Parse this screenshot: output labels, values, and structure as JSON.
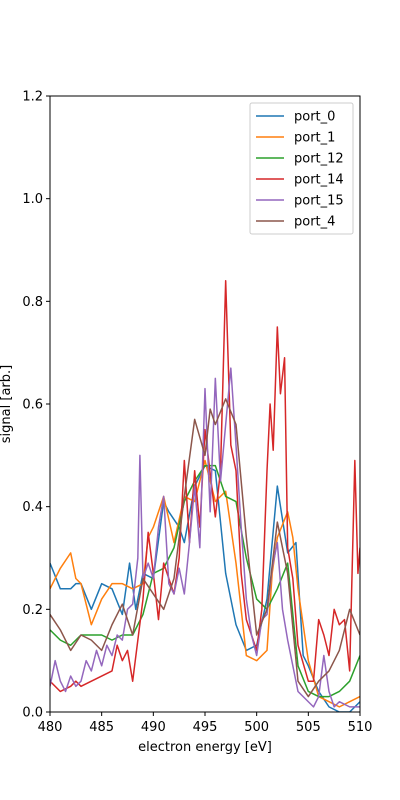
{
  "chart_data": {
    "type": "line",
    "title": "",
    "xlabel": "electron energy [eV]",
    "ylabel": "signal [arb.]",
    "xlim": [
      480,
      510
    ],
    "ylim": [
      0.0,
      1.2
    ],
    "xticks": [
      "480",
      "485",
      "490",
      "495",
      "500",
      "505",
      "510"
    ],
    "yticks": [
      "0.0",
      "0.2",
      "0.4",
      "0.6",
      "0.8",
      "1.0",
      "1.2"
    ],
    "legend_position": "top-right",
    "grid": false,
    "series": [
      {
        "name": "port_0",
        "color": "#1f77b4",
        "points": [
          [
            480,
            0.29
          ],
          [
            481,
            0.24
          ],
          [
            482,
            0.24
          ],
          [
            482.5,
            0.25
          ],
          [
            483,
            0.25
          ],
          [
            484,
            0.2
          ],
          [
            485,
            0.25
          ],
          [
            486,
            0.24
          ],
          [
            487,
            0.19
          ],
          [
            487.7,
            0.29
          ],
          [
            488.3,
            0.2
          ],
          [
            489,
            0.27
          ],
          [
            490,
            0.26
          ],
          [
            491,
            0.41
          ],
          [
            491.5,
            0.39
          ],
          [
            492.5,
            0.36
          ],
          [
            493,
            0.33
          ],
          [
            494,
            0.44
          ],
          [
            495,
            0.48
          ],
          [
            496,
            0.47
          ],
          [
            497,
            0.27
          ],
          [
            498,
            0.17
          ],
          [
            499,
            0.12
          ],
          [
            500,
            0.13
          ],
          [
            501,
            0.22
          ],
          [
            501.5,
            0.33
          ],
          [
            502,
            0.44
          ],
          [
            503,
            0.31
          ],
          [
            503.8,
            0.33
          ],
          [
            504.5,
            0.11
          ],
          [
            505,
            0.09
          ],
          [
            506,
            0.04
          ],
          [
            507,
            0.01
          ],
          [
            508,
            0.0
          ],
          [
            509,
            0.0
          ],
          [
            510,
            0.02
          ]
        ]
      },
      {
        "name": "port_1",
        "color": "#ff7f0e",
        "points": [
          [
            480,
            0.24
          ],
          [
            481,
            0.28
          ],
          [
            482,
            0.31
          ],
          [
            482.5,
            0.26
          ],
          [
            483,
            0.25
          ],
          [
            484,
            0.17
          ],
          [
            485,
            0.22
          ],
          [
            486,
            0.25
          ],
          [
            487,
            0.25
          ],
          [
            488,
            0.24
          ],
          [
            489,
            0.25
          ],
          [
            489.5,
            0.34
          ],
          [
            490,
            0.36
          ],
          [
            491,
            0.42
          ],
          [
            492,
            0.33
          ],
          [
            493,
            0.42
          ],
          [
            494,
            0.41
          ],
          [
            495,
            0.49
          ],
          [
            496,
            0.41
          ],
          [
            497,
            0.43
          ],
          [
            498,
            0.29
          ],
          [
            499,
            0.11
          ],
          [
            500,
            0.1
          ],
          [
            501,
            0.12
          ],
          [
            501.5,
            0.27
          ],
          [
            502,
            0.34
          ],
          [
            503,
            0.39
          ],
          [
            503.5,
            0.34
          ],
          [
            504,
            0.24
          ],
          [
            505,
            0.1
          ],
          [
            506,
            0.03
          ],
          [
            507,
            0.02
          ],
          [
            508,
            0.01
          ],
          [
            509,
            0.02
          ],
          [
            510,
            0.03
          ]
        ]
      },
      {
        "name": "port_12",
        "color": "#2ca02c",
        "points": [
          [
            480,
            0.16
          ],
          [
            481,
            0.14
          ],
          [
            482,
            0.13
          ],
          [
            483,
            0.15
          ],
          [
            485,
            0.15
          ],
          [
            486,
            0.14
          ],
          [
            487,
            0.15
          ],
          [
            488,
            0.15
          ],
          [
            489,
            0.19
          ],
          [
            490,
            0.27
          ],
          [
            491,
            0.28
          ],
          [
            492,
            0.32
          ],
          [
            493,
            0.41
          ],
          [
            494,
            0.45
          ],
          [
            495,
            0.48
          ],
          [
            496,
            0.48
          ],
          [
            497,
            0.42
          ],
          [
            498,
            0.41
          ],
          [
            499,
            0.3
          ],
          [
            500,
            0.22
          ],
          [
            501,
            0.2
          ],
          [
            502,
            0.24
          ],
          [
            503,
            0.29
          ],
          [
            504,
            0.09
          ],
          [
            505,
            0.04
          ],
          [
            506,
            0.03
          ],
          [
            507,
            0.03
          ],
          [
            508,
            0.04
          ],
          [
            509,
            0.06
          ],
          [
            510,
            0.11
          ]
        ]
      },
      {
        "name": "port_14",
        "color": "#d62728",
        "points": [
          [
            480,
            0.06
          ],
          [
            481,
            0.04
          ],
          [
            482,
            0.05
          ],
          [
            482.5,
            0.06
          ],
          [
            483,
            0.05
          ],
          [
            484,
            0.06
          ],
          [
            485,
            0.07
          ],
          [
            486,
            0.08
          ],
          [
            486.5,
            0.13
          ],
          [
            487,
            0.1
          ],
          [
            487.5,
            0.12
          ],
          [
            488,
            0.06
          ],
          [
            489,
            0.22
          ],
          [
            489.5,
            0.35
          ],
          [
            490,
            0.27
          ],
          [
            490.5,
            0.18
          ],
          [
            491,
            0.29
          ],
          [
            492,
            0.23
          ],
          [
            492.5,
            0.3
          ],
          [
            493,
            0.49
          ],
          [
            493.5,
            0.33
          ],
          [
            494,
            0.47
          ],
          [
            494.5,
            0.36
          ],
          [
            495,
            0.55
          ],
          [
            496,
            0.38
          ],
          [
            496.5,
            0.47
          ],
          [
            497,
            0.84
          ],
          [
            497.5,
            0.52
          ],
          [
            498,
            0.47
          ],
          [
            498.5,
            0.27
          ],
          [
            499,
            0.18
          ],
          [
            500,
            0.12
          ],
          [
            500.5,
            0.2
          ],
          [
            501,
            0.47
          ],
          [
            501.3,
            0.6
          ],
          [
            501.6,
            0.51
          ],
          [
            502,
            0.75
          ],
          [
            502.3,
            0.62
          ],
          [
            502.7,
            0.69
          ],
          [
            503,
            0.32
          ],
          [
            503.5,
            0.26
          ],
          [
            504,
            0.13
          ],
          [
            505,
            0.06
          ],
          [
            505.5,
            0.06
          ],
          [
            506,
            0.18
          ],
          [
            506.5,
            0.15
          ],
          [
            507,
            0.11
          ],
          [
            507.5,
            0.2
          ],
          [
            508,
            0.17
          ],
          [
            508.5,
            0.18
          ],
          [
            509,
            0.08
          ],
          [
            509.5,
            0.49
          ],
          [
            509.8,
            0.27
          ],
          [
            510,
            0.32
          ]
        ]
      },
      {
        "name": "port_15",
        "color": "#9467bd",
        "points": [
          [
            480,
            0.05
          ],
          [
            480.5,
            0.1
          ],
          [
            481,
            0.06
          ],
          [
            481.5,
            0.04
          ],
          [
            482,
            0.07
          ],
          [
            482.5,
            0.05
          ],
          [
            483,
            0.06
          ],
          [
            483.5,
            0.1
          ],
          [
            484,
            0.08
          ],
          [
            484.5,
            0.12
          ],
          [
            485,
            0.09
          ],
          [
            485.5,
            0.13
          ],
          [
            486,
            0.11
          ],
          [
            486.5,
            0.15
          ],
          [
            487,
            0.14
          ],
          [
            487.5,
            0.2
          ],
          [
            488,
            0.21
          ],
          [
            488.5,
            0.3
          ],
          [
            488.7,
            0.5
          ],
          [
            489,
            0.26
          ],
          [
            489.5,
            0.29
          ],
          [
            490,
            0.26
          ],
          [
            490.5,
            0.36
          ],
          [
            491,
            0.42
          ],
          [
            491.5,
            0.25
          ],
          [
            492,
            0.23
          ],
          [
            492.5,
            0.28
          ],
          [
            493,
            0.23
          ],
          [
            493.5,
            0.33
          ],
          [
            494,
            0.44
          ],
          [
            494.5,
            0.32
          ],
          [
            495,
            0.63
          ],
          [
            495.5,
            0.39
          ],
          [
            496,
            0.65
          ],
          [
            496.5,
            0.45
          ],
          [
            497,
            0.56
          ],
          [
            497.5,
            0.67
          ],
          [
            498,
            0.52
          ],
          [
            498.5,
            0.36
          ],
          [
            499,
            0.22
          ],
          [
            499.5,
            0.15
          ],
          [
            500,
            0.11
          ],
          [
            500.5,
            0.18
          ],
          [
            501,
            0.19
          ],
          [
            501.5,
            0.28
          ],
          [
            502,
            0.33
          ],
          [
            502.5,
            0.2
          ],
          [
            503,
            0.14
          ],
          [
            504,
            0.04
          ],
          [
            505,
            0.02
          ],
          [
            505.5,
            0.01
          ],
          [
            506,
            0.03
          ],
          [
            506.5,
            0.11
          ],
          [
            507,
            0.04
          ],
          [
            507.5,
            0.01
          ],
          [
            508,
            0.02
          ],
          [
            509,
            0.01
          ],
          [
            510,
            0.01
          ]
        ]
      },
      {
        "name": "port_4",
        "color": "#8c564b",
        "points": [
          [
            480,
            0.19
          ],
          [
            481,
            0.16
          ],
          [
            482,
            0.12
          ],
          [
            483,
            0.15
          ],
          [
            484,
            0.14
          ],
          [
            485,
            0.12
          ],
          [
            486,
            0.17
          ],
          [
            487,
            0.21
          ],
          [
            488,
            0.15
          ],
          [
            489,
            0.26
          ],
          [
            490,
            0.23
          ],
          [
            491,
            0.2
          ],
          [
            492,
            0.26
          ],
          [
            493,
            0.42
          ],
          [
            494,
            0.57
          ],
          [
            495,
            0.5
          ],
          [
            495.5,
            0.59
          ],
          [
            496,
            0.56
          ],
          [
            497,
            0.61
          ],
          [
            498,
            0.56
          ],
          [
            499,
            0.34
          ],
          [
            500,
            0.15
          ],
          [
            501,
            0.2
          ],
          [
            502,
            0.37
          ],
          [
            503,
            0.27
          ],
          [
            504,
            0.06
          ],
          [
            505,
            0.03
          ],
          [
            506,
            0.06
          ],
          [
            507,
            0.08
          ],
          [
            508,
            0.12
          ],
          [
            509,
            0.2
          ],
          [
            510,
            0.15
          ]
        ]
      }
    ]
  }
}
